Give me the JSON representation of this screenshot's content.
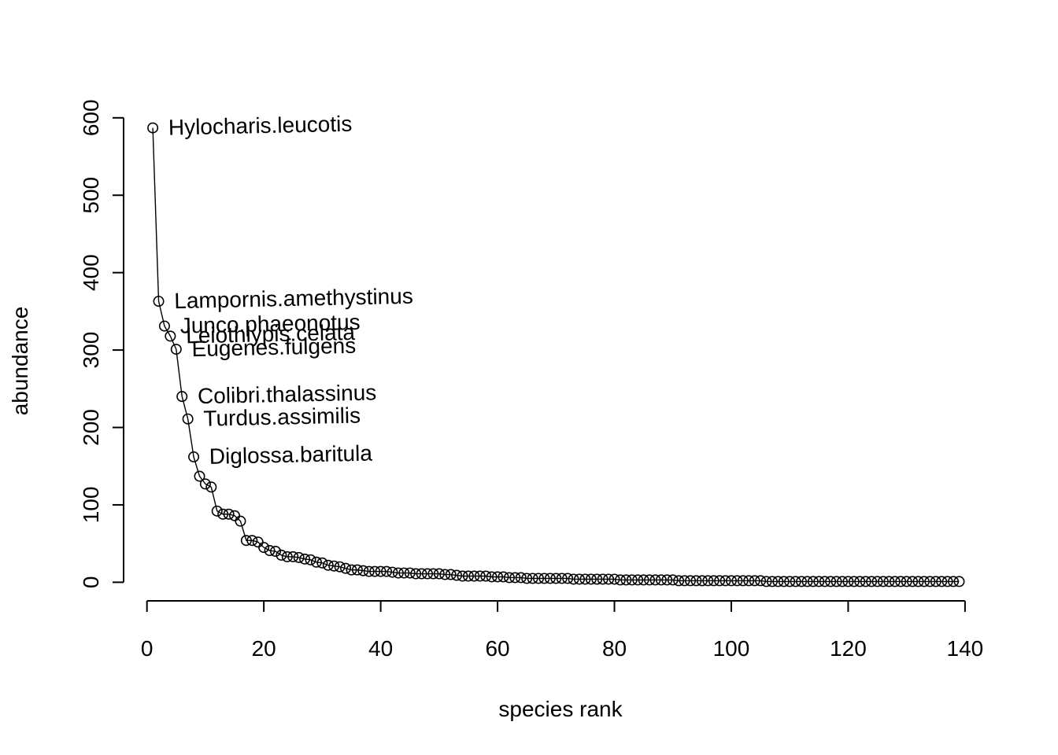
{
  "chart_data": {
    "type": "line",
    "title": "",
    "xlabel": "species rank",
    "ylabel": "abundance",
    "xlim": [
      -4,
      145
    ],
    "ylim": [
      -24,
      612
    ],
    "x_ticks": [
      0,
      20,
      40,
      60,
      80,
      100,
      120,
      140
    ],
    "y_ticks": [
      0,
      100,
      200,
      300,
      400,
      500,
      600
    ],
    "x_tick_labels": [
      "0",
      "20",
      "40",
      "60",
      "80",
      "100",
      "120",
      "140"
    ],
    "y_tick_labels": [
      "0",
      "100",
      "200",
      "300",
      "400",
      "500",
      "600"
    ],
    "grid": false,
    "markers": "open-circle",
    "series": [
      {
        "x": [
          1,
          2,
          3,
          4,
          5,
          6,
          7,
          8,
          9,
          10,
          11,
          12,
          13,
          14,
          15,
          16,
          17,
          18,
          19,
          20,
          21,
          22,
          23,
          24,
          25,
          26,
          27,
          28,
          29,
          30,
          31,
          32,
          33,
          34,
          35,
          36,
          37,
          38,
          39,
          40,
          41,
          42,
          43,
          44,
          45,
          46,
          47,
          48,
          49,
          50,
          51,
          52,
          53,
          54,
          55,
          56,
          57,
          58,
          59,
          60,
          61,
          62,
          63,
          64,
          65,
          66,
          67,
          68,
          69,
          70,
          71,
          72,
          73,
          74,
          75,
          76,
          77,
          78,
          79,
          80,
          81,
          82,
          83,
          84,
          85,
          86,
          87,
          88,
          89,
          90,
          91,
          92,
          93,
          94,
          95,
          96,
          97,
          98,
          99,
          100,
          101,
          102,
          103,
          104,
          105,
          106,
          107,
          108,
          109,
          110,
          111,
          112,
          113,
          114,
          115,
          116,
          117,
          118,
          119,
          120,
          121,
          122,
          123,
          124,
          125,
          126,
          127,
          128,
          129,
          130,
          131,
          132,
          133,
          134,
          135,
          136,
          137,
          138,
          139
        ],
        "y": [
          587,
          363,
          331,
          318,
          301,
          240,
          211,
          162,
          137,
          127,
          123,
          92,
          88,
          88,
          86,
          79,
          54,
          54,
          52,
          45,
          41,
          40,
          35,
          33,
          33,
          32,
          30,
          29,
          26,
          25,
          22,
          21,
          20,
          18,
          16,
          16,
          15,
          14,
          14,
          14,
          14,
          13,
          12,
          12,
          12,
          11,
          11,
          11,
          11,
          11,
          10,
          10,
          9,
          8,
          8,
          8,
          8,
          8,
          7,
          7,
          7,
          6,
          6,
          6,
          5,
          5,
          5,
          5,
          5,
          5,
          5,
          5,
          4,
          4,
          4,
          4,
          4,
          4,
          4,
          4,
          3,
          3,
          3,
          3,
          3,
          3,
          3,
          3,
          3,
          3,
          2,
          2,
          2,
          2,
          2,
          2,
          2,
          2,
          2,
          2,
          2,
          2,
          2,
          2,
          2,
          1,
          1,
          1,
          1,
          1,
          1,
          1,
          1,
          1,
          1,
          1,
          1,
          1,
          1,
          1,
          1,
          1,
          1,
          1,
          1,
          1,
          1,
          1,
          1,
          1,
          1,
          1,
          1,
          1,
          1,
          1,
          1,
          1,
          1
        ]
      }
    ],
    "annotations": [
      {
        "text": "Hylocharis.leucotis",
        "x": 1,
        "y": 587
      },
      {
        "text": "Lampornis.amethystinus",
        "x": 2,
        "y": 363
      },
      {
        "text": "Junco.phaeonotus",
        "x": 3,
        "y": 331
      },
      {
        "text": "Leiothlypis.celata",
        "x": 4,
        "y": 318
      },
      {
        "text": "Eugenes.fulgens",
        "x": 5,
        "y": 301
      },
      {
        "text": "Colibri.thalassinus",
        "x": 6,
        "y": 240
      },
      {
        "text": "Turdus.assimilis",
        "x": 7,
        "y": 211
      },
      {
        "text": "Diglossa.baritula",
        "x": 8,
        "y": 162
      }
    ]
  }
}
